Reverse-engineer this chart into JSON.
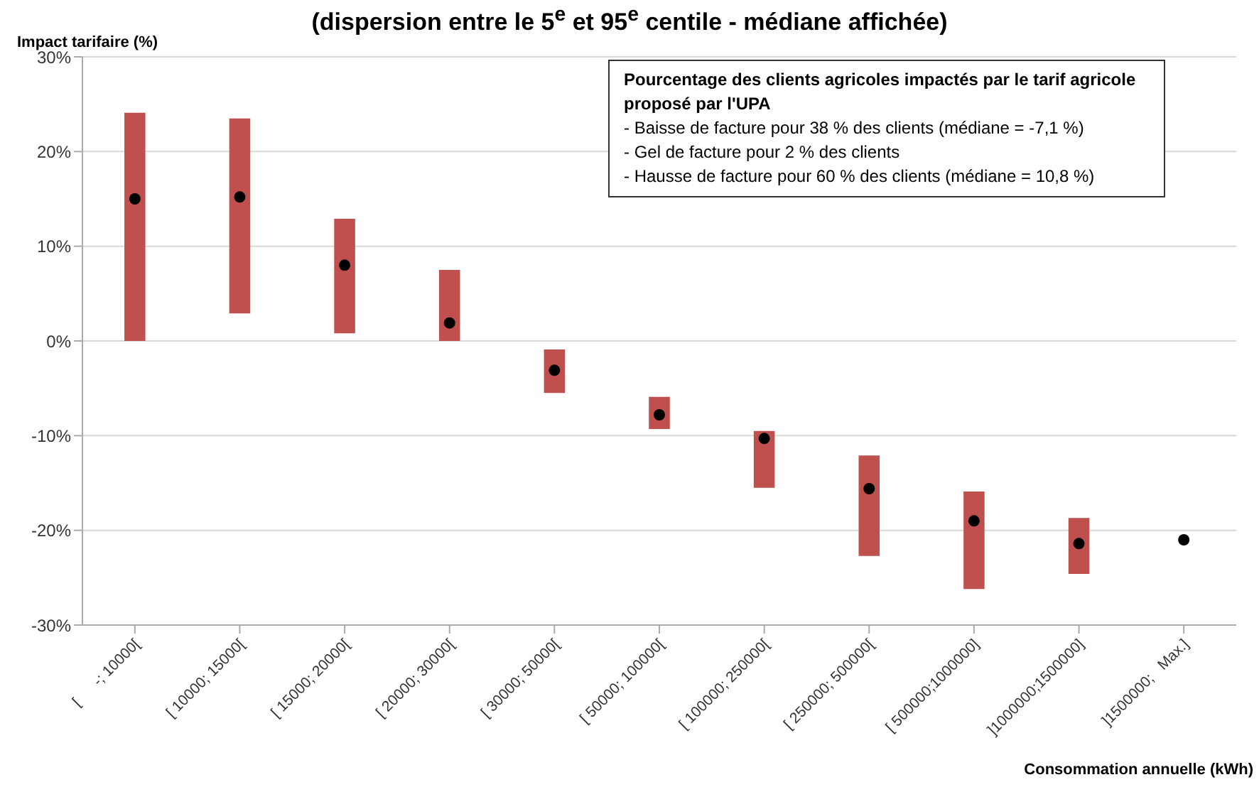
{
  "chart_data": {
    "type": "bar",
    "title": "(dispersion entre le 5$^{e}$ et 95$^{e}$ centile - médiane affichée)",
    "ylabel": "Impact tarifaire (%)",
    "xlabel": "Consommation annuelle (kWh)",
    "categories": [
      "[      -; 10000[",
      "[ 10000; 15000[",
      "[ 15000; 20000[",
      "[ 20000; 30000[",
      "[ 30000; 50000[",
      "[ 50000; 100000[",
      "[ 100000; 250000[",
      "[ 250000; 500000[",
      "[ 500000;1000000]",
      "]1000000;1500000]",
      "]1500000;   Max.]"
    ],
    "series": [
      {
        "color": "#c0504d",
        "base": [
          0,
          2.9,
          0.8,
          0,
          -5.5,
          -9.3,
          -15.5,
          -22.7,
          -26.2,
          -24.6,
          null
        ],
        "values": [
          24.1,
          20.6,
          12.1,
          7.5,
          4.6,
          3.4,
          6.0,
          10.6,
          10.3,
          5.9,
          null
        ]
      },
      {
        "type": "scatter",
        "color": "#000000",
        "marker": "circle",
        "x": [
          "[      -; 10000[",
          "[ 10000; 15000[",
          "[ 15000; 20000[",
          "[ 20000; 30000[",
          "[ 30000; 50000[",
          "[ 50000; 100000[",
          "[ 100000; 250000[",
          "[ 250000; 500000[",
          "[ 500000;1000000]",
          "]1000000;1500000]",
          "]1500000;   Max.]"
        ],
        "values": [
          15.0,
          15.2,
          8.0,
          1.9,
          -3.1,
          -7.8,
          -10.3,
          -15.6,
          -19.0,
          -21.4,
          -21.0
        ]
      }
    ],
    "ylim": [
      -30,
      30
    ],
    "yticks": [
      {
        "value": -30,
        "label": "-30%"
      },
      {
        "value": -20,
        "label": "-20%"
      },
      {
        "value": -10,
        "label": "-10%"
      },
      {
        "value": 0,
        "label": "0%"
      },
      {
        "value": 10,
        "label": "10%"
      },
      {
        "value": 20,
        "label": "20%"
      },
      {
        "value": 30,
        "label": "30%"
      }
    ],
    "grid": "y",
    "legend": false,
    "annotations": [
      "Pourcentage des clients agricoles impactés par le tarif agricole proposé par l'UPA",
      "- Baisse de facture pour 38 % des clients (médiane = -7,1 %)",
      "- Gel de facture pour 2 % des clients",
      "- Hausse de facture pour 60 % des clients (médiane = 10,8 %)"
    ]
  }
}
